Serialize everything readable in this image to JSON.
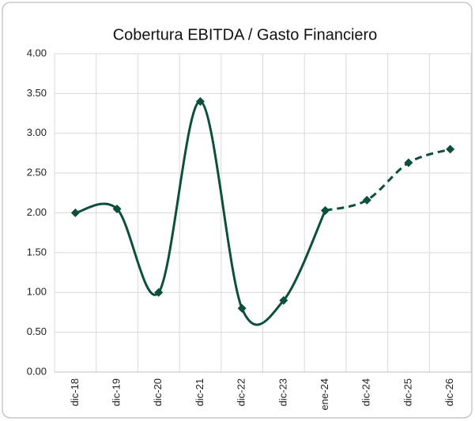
{
  "chart_data": {
    "type": "line",
    "title": "Cobertura EBITDA / Gasto Financiero",
    "categories": [
      "dic-18",
      "dic-19",
      "dic-20",
      "dic-21",
      "dic-22",
      "dic-23",
      "ene-24",
      "dic-24",
      "dic-25",
      "dic-26"
    ],
    "series": [
      {
        "color": "#0b4f3c",
        "dash": false,
        "values": [
          2.0,
          2.05,
          1.0,
          3.4,
          0.8,
          0.9,
          2.03,
          null,
          null,
          null
        ]
      },
      {
        "color": "#0b4f3c",
        "dash": true,
        "values": [
          null,
          null,
          null,
          null,
          null,
          null,
          2.03,
          2.16,
          2.63,
          2.8
        ]
      }
    ],
    "ylim": [
      0,
      4
    ],
    "yticks": [
      {
        "value": 0,
        "label": "0.00"
      },
      {
        "value": 0.5,
        "label": "0.50"
      },
      {
        "value": 1,
        "label": "1.00"
      },
      {
        "value": 1.5,
        "label": "1.50"
      },
      {
        "value": 2,
        "label": "2.00"
      },
      {
        "value": 2.5,
        "label": "2.50"
      },
      {
        "value": 3,
        "label": "3.00"
      },
      {
        "value": 3.5,
        "label": "3.50"
      },
      {
        "value": 4,
        "label": "4.00"
      }
    ],
    "grid": true,
    "smooth": true,
    "marker": "diamond"
  }
}
